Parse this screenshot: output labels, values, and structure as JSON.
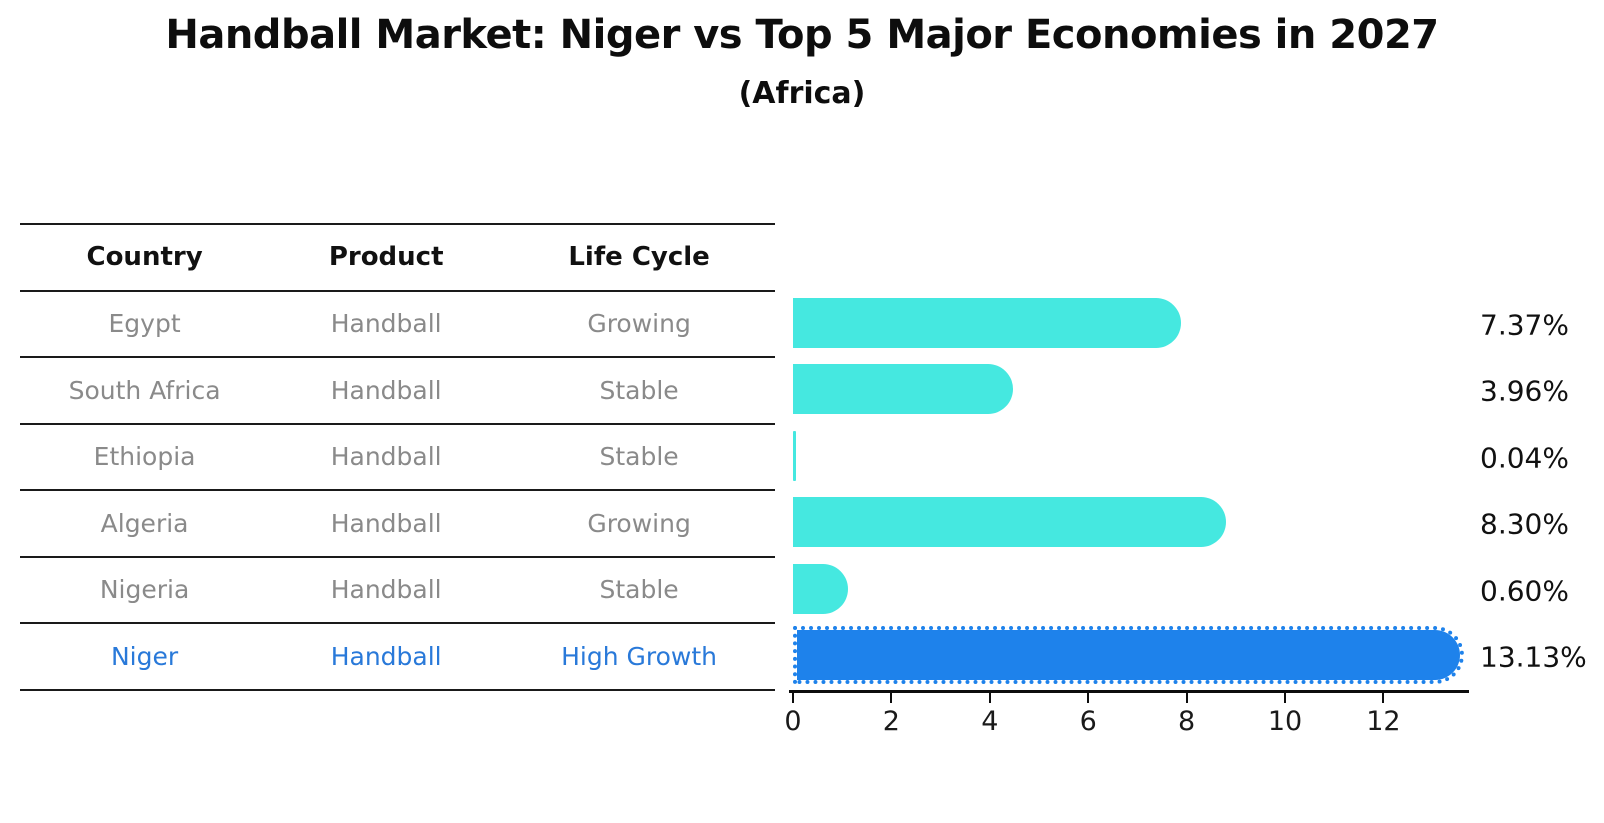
{
  "title": "Handball Market: Niger vs Top 5 Major Economies in 2027",
  "subtitle": "(Africa)",
  "table": {
    "headers": [
      "Country",
      "Product",
      "Life Cycle"
    ],
    "rows": [
      {
        "country": "Egypt",
        "product": "Handball",
        "life_cycle": "Growing",
        "highlighted": false
      },
      {
        "country": "South Africa",
        "product": "Handball",
        "life_cycle": "Stable",
        "highlighted": false
      },
      {
        "country": "Ethiopia",
        "product": "Handball",
        "life_cycle": "Stable",
        "highlighted": false
      },
      {
        "country": "Algeria",
        "product": "Handball",
        "life_cycle": "Growing",
        "highlighted": false
      },
      {
        "country": "Nigeria",
        "product": "Handball",
        "life_cycle": "Stable",
        "highlighted": false
      },
      {
        "country": "Niger",
        "product": "Handball",
        "life_cycle": "High Growth",
        "highlighted": true
      }
    ]
  },
  "chart_data": {
    "type": "bar",
    "orientation": "horizontal",
    "categories": [
      "Egypt",
      "South Africa",
      "Ethiopia",
      "Algeria",
      "Nigeria",
      "Niger"
    ],
    "values": [
      7.37,
      3.96,
      0.04,
      8.3,
      0.6,
      13.13
    ],
    "value_labels": [
      "7.37%",
      "3.96%",
      "0.04%",
      "8.30%",
      "0.60%",
      "13.13%"
    ],
    "bar_colors": [
      "#45e8e0",
      "#45e8e0",
      "#45e8e0",
      "#45e8e0",
      "#45e8e0",
      "#1e82eb"
    ],
    "highlight_index": 5,
    "highlight_style": "dotted-border",
    "title": "Handball Market: Niger vs Top 5 Major Economies in 2027",
    "subtitle": "(Africa)",
    "xlabel": "",
    "ylabel": "",
    "xlim": [
      0,
      13.7
    ],
    "xticks": [
      0,
      2,
      4,
      6,
      8,
      10,
      12
    ],
    "grid": false,
    "legend": false
  },
  "colors": {
    "bar_turquoise": "#45e8e0",
    "bar_highlight_blue": "#1e82eb",
    "highlight_text": "#2979d9",
    "row_text": "#8a8a8a",
    "header_text": "#111111",
    "line": "#1a1a1a"
  }
}
